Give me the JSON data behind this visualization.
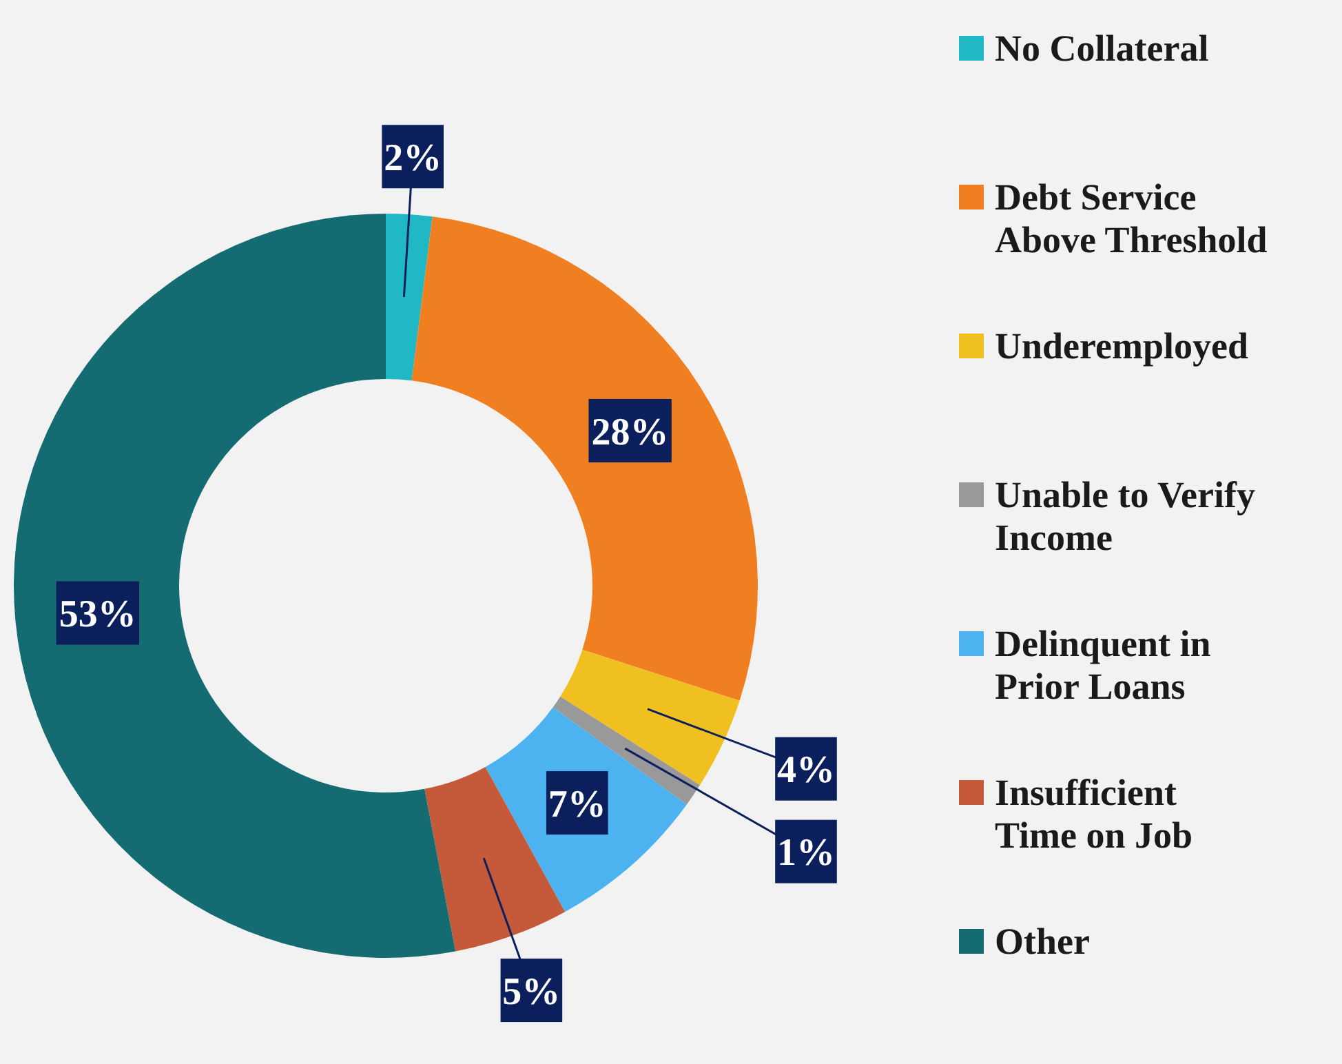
{
  "chart_data": {
    "type": "donut",
    "categories": [
      "No Collateral",
      "Debt Service Above Threshold",
      "Underemployed",
      "Unable to Verify Income",
      "Delinquent in Prior Loans",
      "Insufficient Time on Job",
      "Other"
    ],
    "values": [
      2,
      28,
      4,
      1,
      7,
      5,
      53
    ],
    "colors": [
      "#1fb8c4",
      "#f07f22",
      "#f0c020",
      "#999999",
      "#4db3f0",
      "#c45a3a",
      "#146c72"
    ],
    "value_labels": [
      "2%",
      "28%",
      "4%",
      "1%",
      "7%",
      "5%",
      "53%"
    ],
    "legend": "right"
  }
}
